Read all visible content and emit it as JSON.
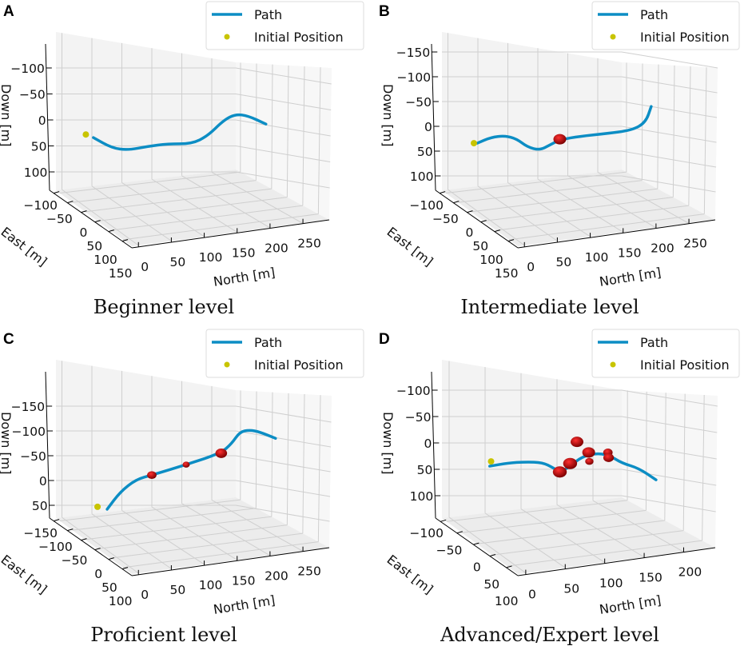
{
  "colors": {
    "path": "#0c8dc4",
    "initial_position": "#c8c400",
    "obstacle": "#cc0000",
    "pane": "#f2f2f2",
    "grid": "#cfcfcf"
  },
  "legend": {
    "path_label": "Path",
    "initial_label": "Initial Position"
  },
  "axis_labels": {
    "north": "North [m]",
    "east": "East [m]",
    "down": "Down [m]"
  },
  "chart_data": [
    {
      "type": "line3d",
      "panel_label": "A",
      "caption": "Beginner level",
      "xlabel": "North [m]",
      "ylabel": "East [m]",
      "zlabel": "Down [m]",
      "north_ticks": [
        "0",
        "50",
        "100",
        "150",
        "200",
        "250"
      ],
      "east_ticks": [
        "−100",
        "−50",
        "0",
        "50",
        "100",
        "150"
      ],
      "down_ticks": [
        "−100",
        "−50",
        "0",
        "50",
        "100"
      ],
      "down_values": [
        -100,
        -50,
        0,
        50,
        100
      ],
      "zlim": [
        -130,
        130
      ],
      "grid": true,
      "legend": "top-right",
      "initial_position": {
        "north": -3,
        "down": 28
      },
      "path": {
        "north": [
          8,
          35,
          58,
          87,
          116,
          151,
          174,
          198,
          215,
          233,
          259
        ],
        "down": [
          34,
          54,
          58,
          51,
          46,
          46,
          31,
          0,
          -11,
          -8,
          8
        ]
      },
      "obstacles": []
    },
    {
      "type": "line3d",
      "panel_label": "B",
      "caption": "Intermediate level",
      "xlabel": "North [m]",
      "ylabel": "East [m]",
      "zlabel": "Down [m]",
      "north_ticks": [
        "0",
        "50",
        "100",
        "150",
        "200",
        "250"
      ],
      "east_ticks": [
        "−100",
        "−50",
        "0",
        "50",
        "100",
        "150"
      ],
      "down_ticks": [
        "−150",
        "−100",
        "−50",
        "0",
        "50",
        "100"
      ],
      "down_values": [
        -150,
        -100,
        -50,
        0,
        50,
        100
      ],
      "zlim": [
        -170,
        130
      ],
      "grid": true,
      "legend": "top-right",
      "initial_position": {
        "north": 0,
        "down": 34
      },
      "path": {
        "north": [
          5,
          25,
          45,
          62,
          78,
          96,
          110,
          125,
          155,
          190,
          230,
          250,
          258
        ],
        "down": [
          34,
          22,
          19,
          25,
          42,
          48,
          38,
          27,
          20,
          15,
          8,
          -8,
          -40
        ]
      },
      "obstacles": [
        {
          "north": 125,
          "down": 26,
          "size": 1.0
        }
      ]
    },
    {
      "type": "line3d",
      "panel_label": "C",
      "caption": "Proficient level",
      "xlabel": "North [m]",
      "ylabel": "East [m]",
      "zlabel": "Down [m]",
      "north_ticks": [
        "0",
        "50",
        "100",
        "150",
        "200",
        "250"
      ],
      "east_ticks": [
        "−150",
        "−100",
        "−50",
        "0",
        "50",
        "100"
      ],
      "down_ticks": [
        "−150",
        "−100",
        "−50",
        "0",
        "50"
      ],
      "down_values": [
        -150,
        -100,
        -50,
        0,
        50
      ],
      "zlim": [
        -190,
        80
      ],
      "grid": true,
      "legend": "top-right",
      "initial_position": {
        "north": 14,
        "down": 53
      },
      "path": {
        "north": [
          28,
          47,
          70,
          93,
          143,
          193,
          209,
          221,
          235,
          250,
          273
        ],
        "down": [
          58,
          23,
          -2,
          -11,
          -32,
          -55,
          -74,
          -98,
          -102,
          -98,
          -85
        ]
      },
      "obstacles": [
        {
          "north": 93,
          "down": -11,
          "size": 0.7
        },
        {
          "north": 143,
          "down": -32,
          "size": 0.5
        },
        {
          "north": 194,
          "down": -55,
          "size": 0.9
        }
      ]
    },
    {
      "type": "line3d",
      "panel_label": "D",
      "caption": "Advanced/Expert level",
      "xlabel": "North [m]",
      "ylabel": "East [m]",
      "zlabel": "Down [m]",
      "north_ticks": [
        "0",
        "50",
        "100",
        "150",
        "200"
      ],
      "east_ticks": [
        "−100",
        "−50",
        "0",
        "50",
        "100"
      ],
      "down_ticks": [
        "−100",
        "−50",
        "0",
        "50",
        "100"
      ],
      "down_values": [
        -100,
        -50,
        0,
        50,
        100
      ],
      "zlim": [
        -130,
        130
      ],
      "grid": true,
      "legend": "top-right",
      "initial_position": {
        "north": 25,
        "down": 35
      },
      "path": {
        "north": [
          23,
          50,
          75,
          100,
          115,
          125,
          140,
          153,
          168,
          183,
          198,
          215,
          240,
          265
        ],
        "down": [
          44,
          38,
          36,
          37,
          47,
          55,
          45,
          30,
          22,
          20,
          24,
          38,
          48,
          70
        ]
      },
      "obstacles": [
        {
          "north": 125,
          "down": 55,
          "size": 1.1
        },
        {
          "north": 140,
          "down": 39,
          "size": 1.1
        },
        {
          "north": 150,
          "down": -2,
          "size": 1.0
        },
        {
          "north": 167,
          "down": 18,
          "size": 1.0
        },
        {
          "north": 168,
          "down": 35,
          "size": 0.6
        },
        {
          "north": 195,
          "down": 18,
          "size": 0.7
        },
        {
          "north": 196,
          "down": 28,
          "size": 0.8
        }
      ]
    }
  ]
}
